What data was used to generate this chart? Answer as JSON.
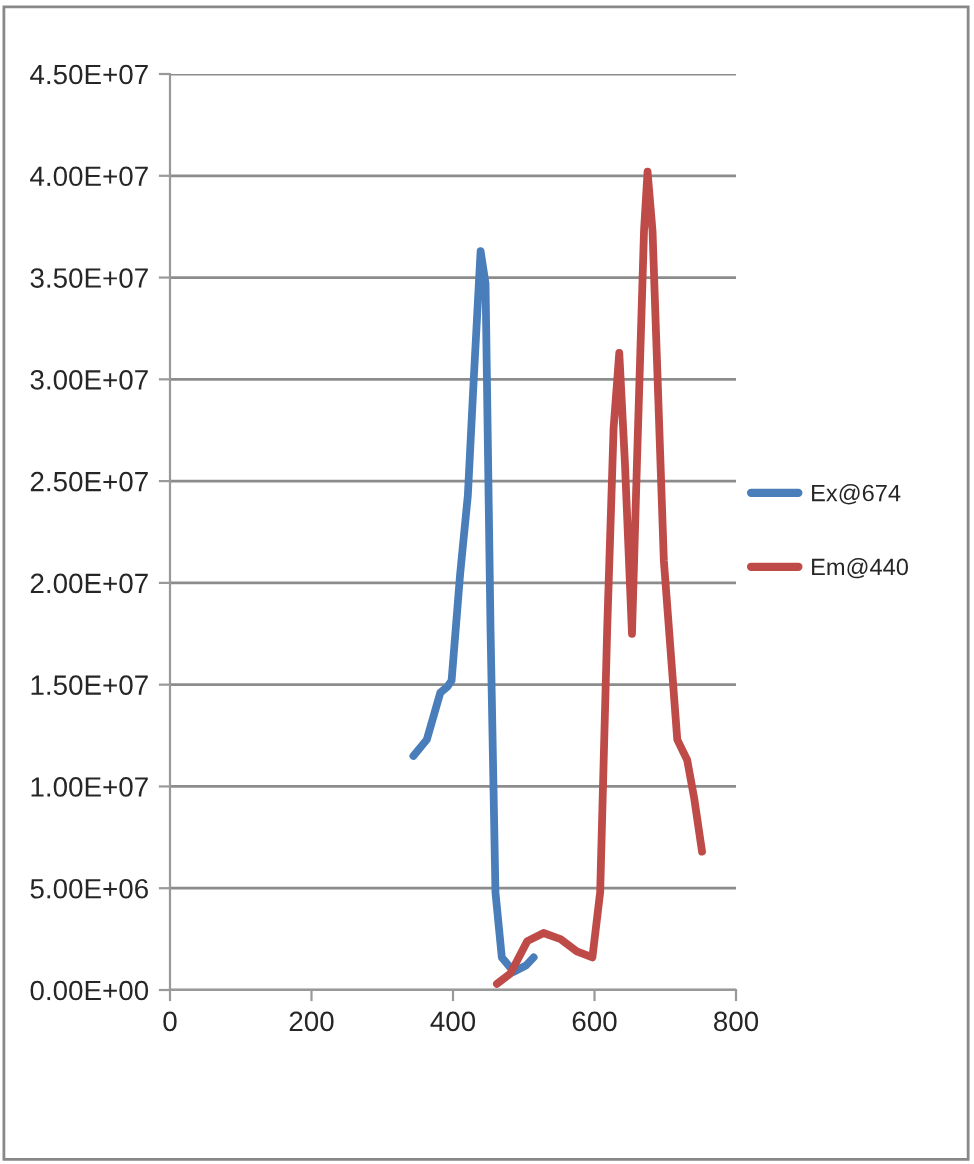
{
  "chart_data": {
    "type": "line",
    "series": [
      {
        "name": "Ex@674",
        "color": "#4a7ebb",
        "x": [
          344,
          363,
          382,
          392,
          398,
          410,
          421,
          429,
          439,
          446,
          453,
          460,
          469,
          486,
          503,
          514
        ],
        "values": [
          11500000,
          12300000,
          14600000,
          14900000,
          15200000,
          20400000,
          24300000,
          29800000,
          36300000,
          34700000,
          17800000,
          4800000,
          1600000,
          900000,
          1200000,
          1600000
        ]
      },
      {
        "name": "Em@440",
        "color": "#be4b48",
        "x": [
          462,
          481,
          505,
          528,
          552,
          575,
          597,
          608,
          618,
          627,
          635,
          643,
          653,
          660,
          670,
          675,
          682,
          698,
          717,
          731,
          741,
          752
        ],
        "values": [
          300000,
          800000,
          2400000,
          2800000,
          2500000,
          1900000,
          1600000,
          4800000,
          17800000,
          27600000,
          31300000,
          25900000,
          17500000,
          25900000,
          37300000,
          40200000,
          37300000,
          21100000,
          12300000,
          11300000,
          9400000,
          6800000
        ]
      }
    ],
    "xlim": [
      0,
      800
    ],
    "xticks": [
      0,
      200,
      400,
      600,
      800
    ],
    "ylim": [
      0,
      45000000
    ],
    "yticks": [
      {
        "value": 0,
        "label": "0.00E+00"
      },
      {
        "value": 5000000,
        "label": "5.00E+06"
      },
      {
        "value": 10000000,
        "label": "1.00E+07"
      },
      {
        "value": 15000000,
        "label": "1.50E+07"
      },
      {
        "value": 20000000,
        "label": "2.00E+07"
      },
      {
        "value": 25000000,
        "label": "2.50E+07"
      },
      {
        "value": 30000000,
        "label": "3.00E+07"
      },
      {
        "value": 35000000,
        "label": "3.50E+07"
      },
      {
        "value": 40000000,
        "label": "4.00E+07"
      },
      {
        "value": 45000000,
        "label": "4.50E+07"
      }
    ],
    "grid": "y",
    "legend": "right",
    "line_style": "solid",
    "marker": "none"
  }
}
